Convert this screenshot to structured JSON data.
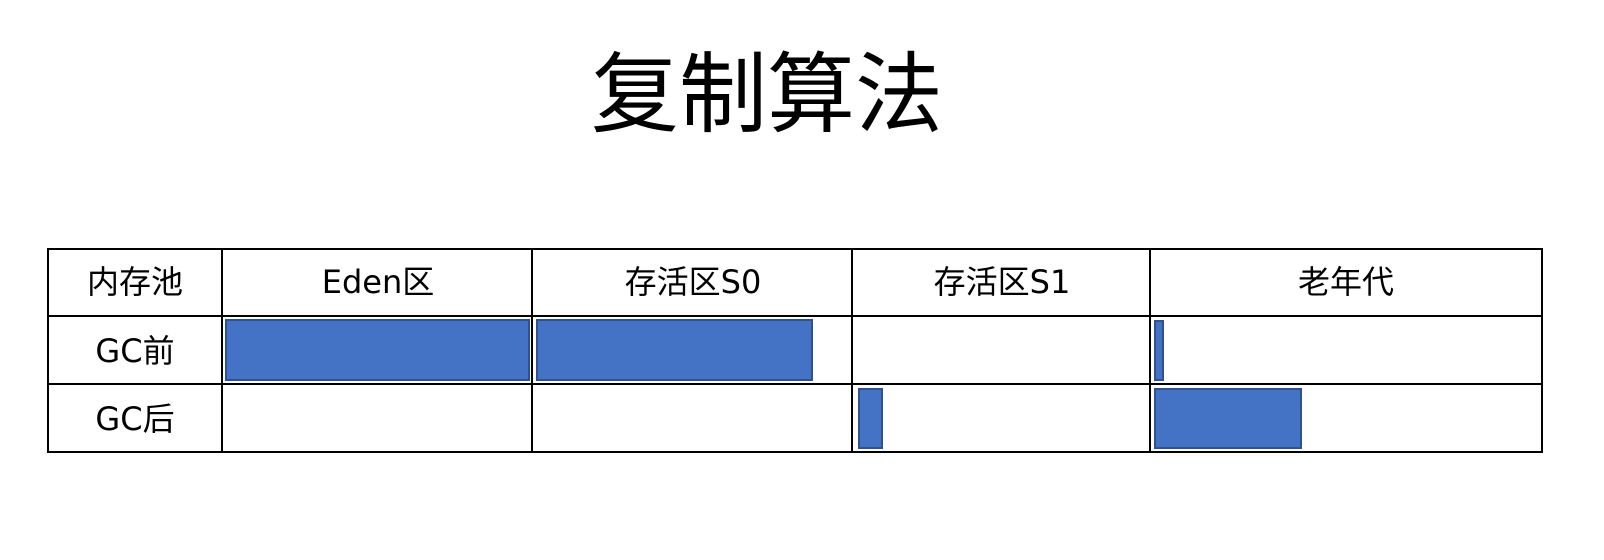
{
  "title": "复制算法",
  "table": {
    "columns": [
      "内存池",
      "Eden区",
      "存活区S0",
      "存活区S1",
      "老年代"
    ],
    "rows": [
      {
        "label": "GC前",
        "fill": {
          "Eden区": 1.0,
          "存活区S0": 0.9,
          "存活区S1": 0,
          "老年代": 0.03
        }
      },
      {
        "label": "GC后",
        "fill": {
          "Eden区": 0,
          "存活区S0": 0,
          "存活区S1": 0.1,
          "老年代": 0.38
        }
      }
    ]
  },
  "colors": {
    "bar_fill": "#4472C4",
    "bar_border": "#2F528F",
    "grid": "#000000"
  }
}
